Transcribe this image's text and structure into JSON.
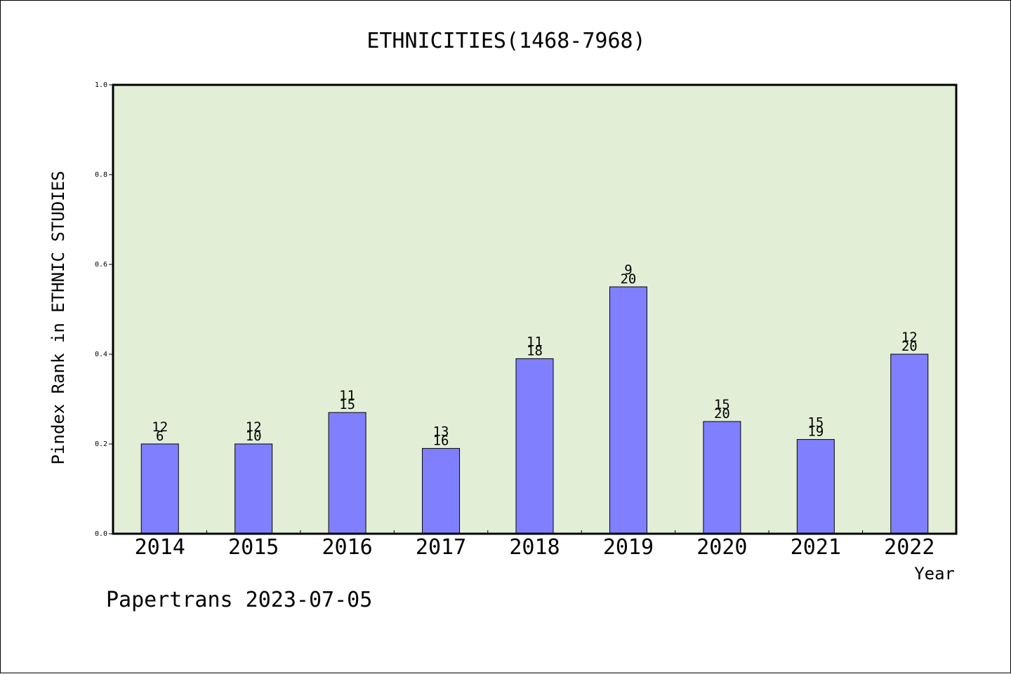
{
  "footer": {
    "credit": "Papertrans 2023-07-05"
  },
  "chart_data": {
    "type": "bar",
    "title": "ETHNICITIES(1468-7968)",
    "xlabel": "Year",
    "ylabel": "Pindex Rank in ETHNIC STUDIES",
    "ylim": [
      0,
      1.0
    ],
    "yticks": [
      "0.0",
      "0.2",
      "0.4",
      "0.6",
      "0.8",
      "1.0"
    ],
    "categories": [
      "2014",
      "2015",
      "2016",
      "2017",
      "2018",
      "2019",
      "2020",
      "2021",
      "2022"
    ],
    "values": [
      0.2,
      0.2,
      0.27,
      0.19,
      0.39,
      0.55,
      0.25,
      0.21,
      0.4
    ],
    "label_top": [
      "12",
      "12",
      "11",
      "13",
      "11",
      "9",
      "15",
      "15",
      "12"
    ],
    "label_bottom": [
      "6",
      "10",
      "15",
      "16",
      "18",
      "20",
      "20",
      "19",
      "20"
    ],
    "grid": false,
    "legend": "none",
    "colors": {
      "plot_bg": "#e2efd6",
      "bar": "#8080ff",
      "bar_edge": "#000000"
    }
  }
}
